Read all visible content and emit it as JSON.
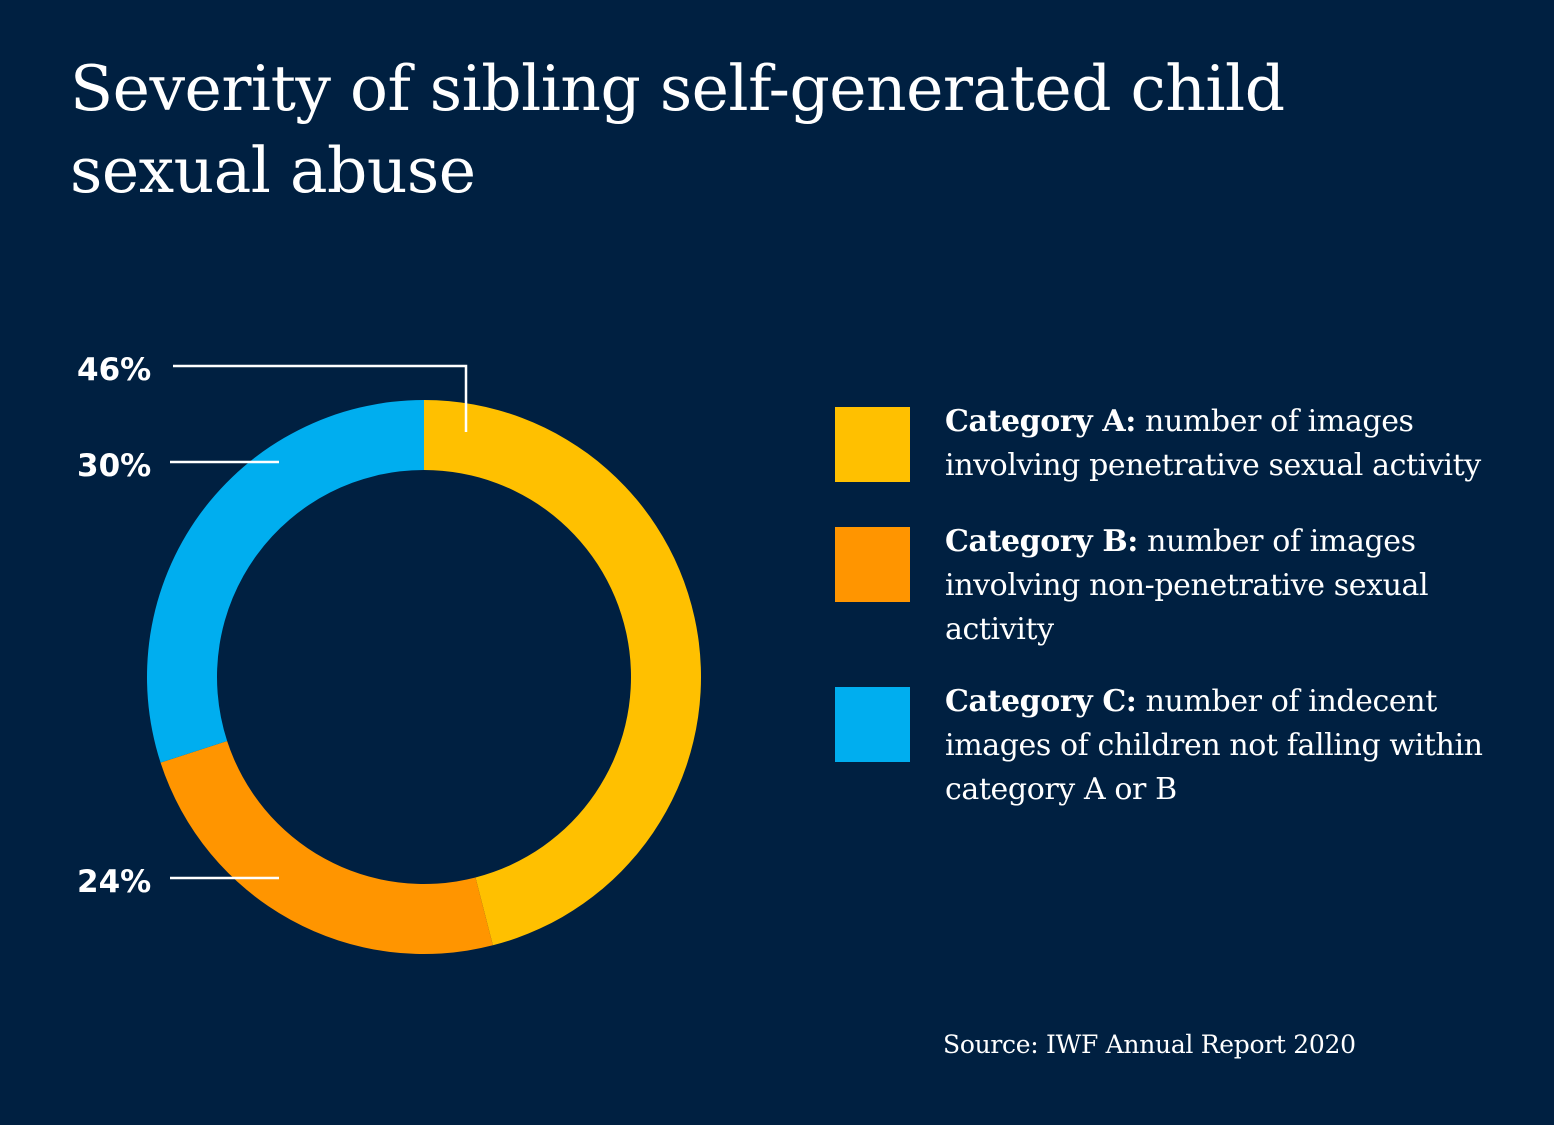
{
  "title": "Severity of sibling self-generated child sexual abuse",
  "chart_data": {
    "type": "pie",
    "title": "Severity of sibling self-generated child sexual abuse",
    "slices": [
      {
        "name": "Category A",
        "value": 46,
        "label": "46%",
        "color": "#FFC000"
      },
      {
        "name": "Category B",
        "value": 24,
        "label": "24%",
        "color": "#FF9500"
      },
      {
        "name": "Category C",
        "value": 30,
        "label": "30%",
        "color": "#00AEEF"
      }
    ]
  },
  "legend": [
    {
      "heading": "Category A:",
      "text": "number of images involving penetrative sexual activity",
      "color": "#FFC000"
    },
    {
      "heading": "Category B:",
      "text": "number of images involving non-penetrative sexual activity",
      "color": "#FF9500"
    },
    {
      "heading": "Category C:",
      "text": "number of indecent images of children not falling within category A or B",
      "color": "#00AEEF"
    }
  ],
  "source": "Source: IWF Annual Report 2020"
}
